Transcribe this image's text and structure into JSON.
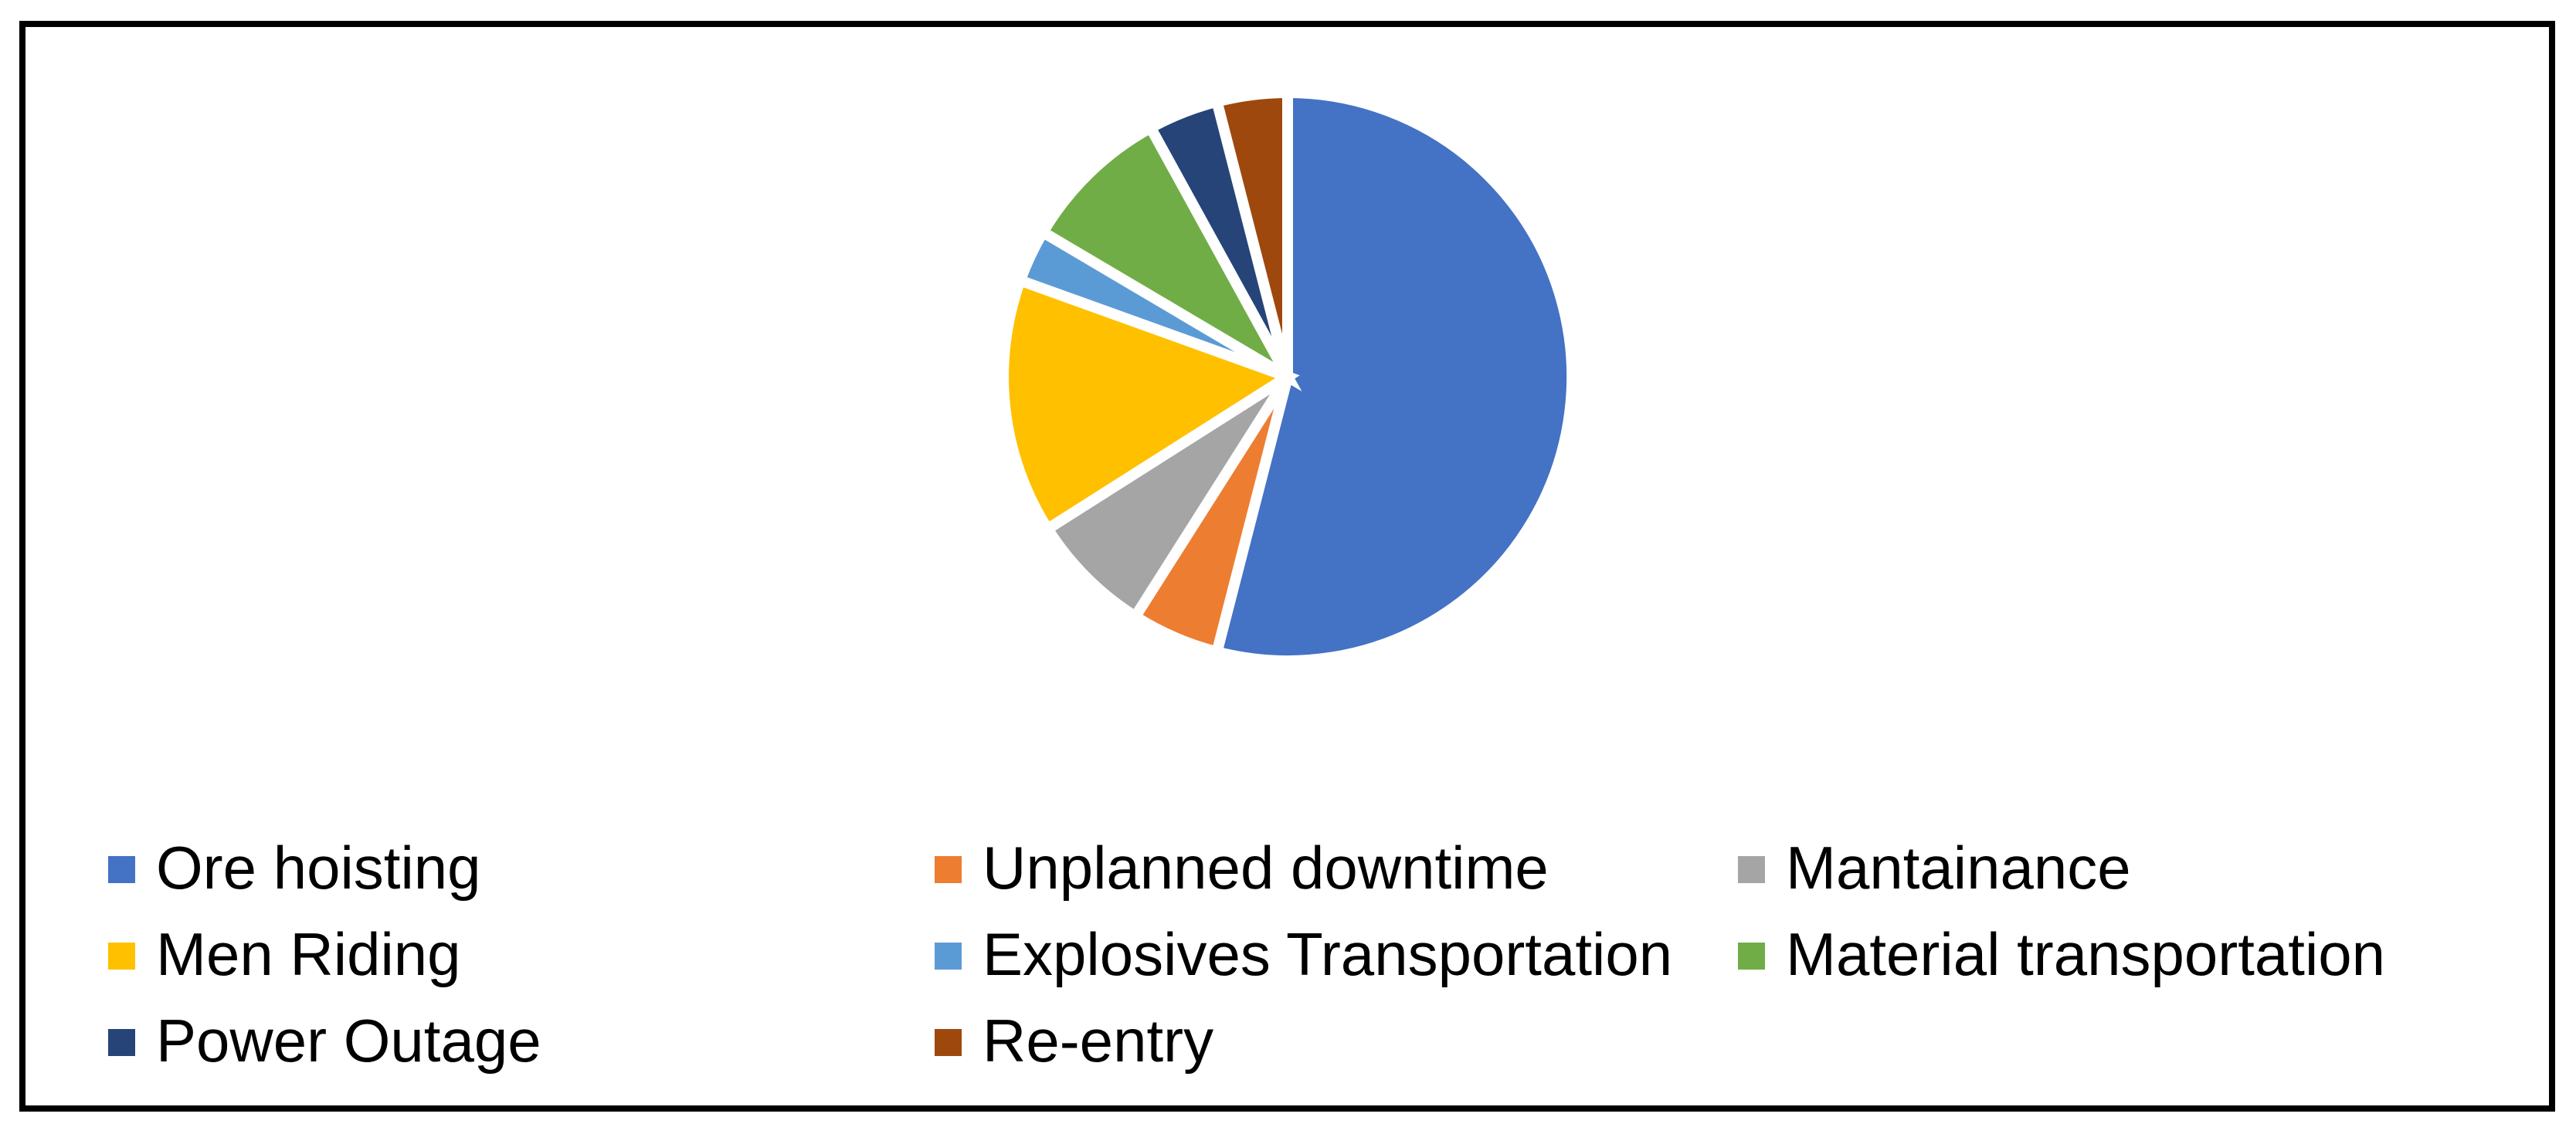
{
  "chart_data": {
    "type": "pie",
    "title": "",
    "categories": [
      "Ore hoisting",
      "Unplanned downtime",
      "Mantainance",
      "Men Riding",
      "Explosives Transportation",
      "Material transportation",
      "Power Outage",
      "Re-entry"
    ],
    "values_percent": [
      54,
      5,
      7,
      14.5,
      3,
      8.5,
      4,
      4
    ],
    "colors": [
      "#4472C4",
      "#ED7D31",
      "#A5A5A5",
      "#FFC000",
      "#5B9BD5",
      "#70AD47",
      "#264478",
      "#9E480E"
    ],
    "start_angle_deg": 0,
    "direction": "clockwise",
    "slice_border_color": "#FFFFFF",
    "legend_position": "bottom",
    "legend_columns": 3,
    "data_labels": "none"
  },
  "frame": {
    "border_color": "#000000",
    "background_color": "#FFFFFF"
  }
}
